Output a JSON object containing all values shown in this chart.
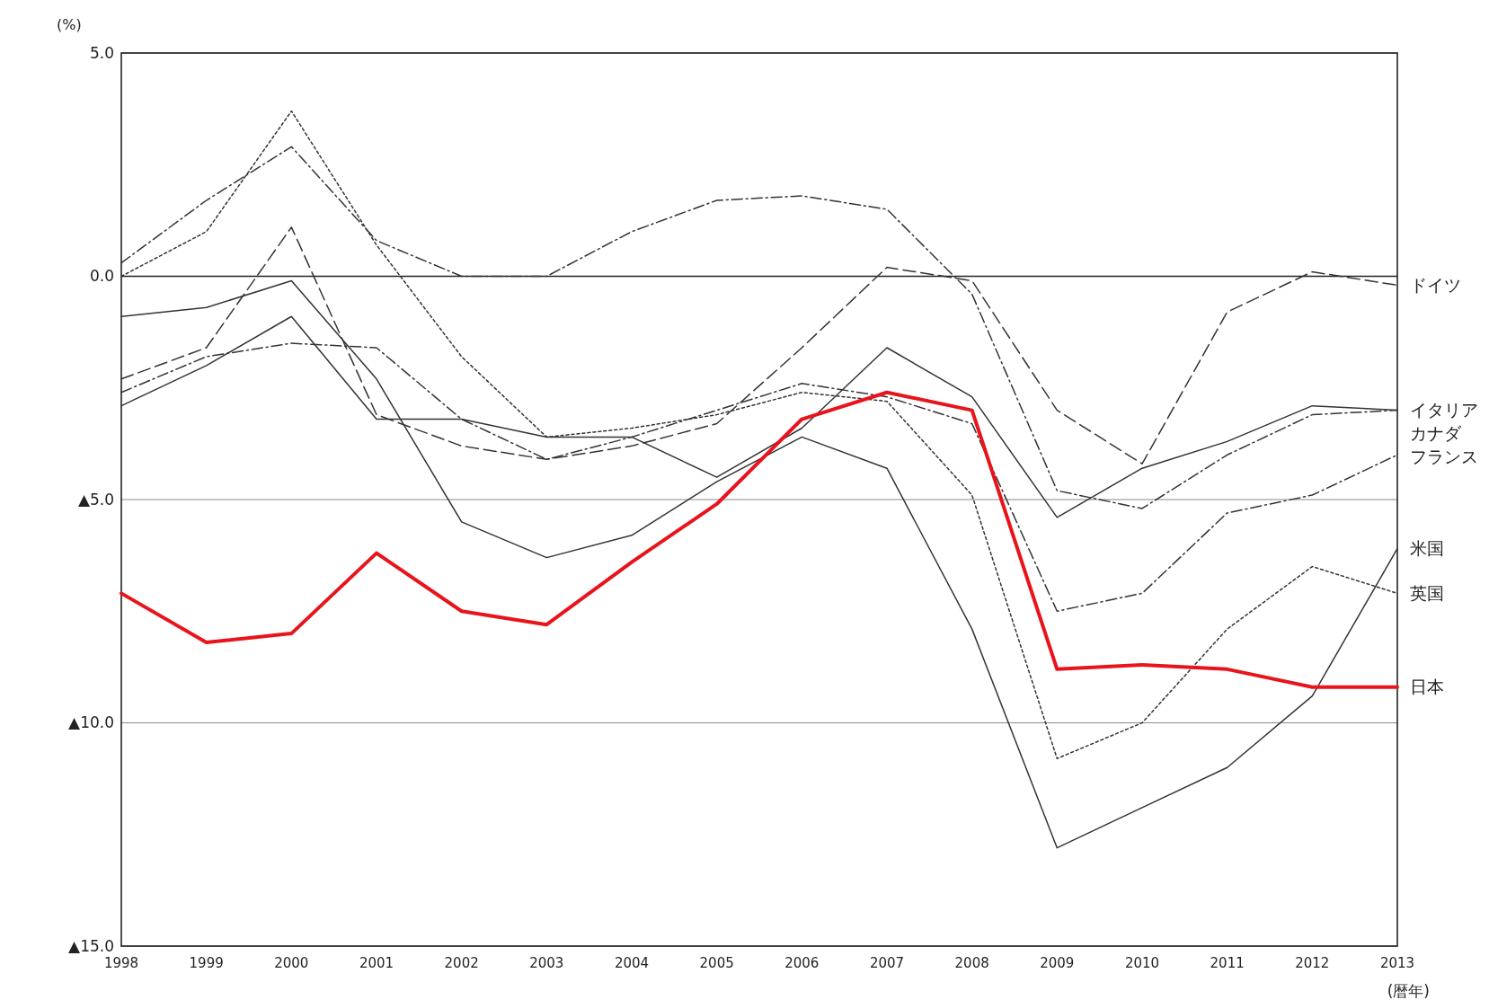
{
  "chart_data": {
    "type": "line",
    "ylabel": "(%)",
    "xlabel": "(暦年)",
    "categories": [
      "1998",
      "1999",
      "2000",
      "2001",
      "2002",
      "2003",
      "2004",
      "2005",
      "2006",
      "2007",
      "2008",
      "2009",
      "2010",
      "2011",
      "2012",
      "2013"
    ],
    "ylim": [
      -15,
      5
    ],
    "yticks": [
      {
        "value": 5,
        "label": "5.0"
      },
      {
        "value": 0,
        "label": "0.0"
      },
      {
        "value": -5,
        "label": "▲5.0"
      },
      {
        "value": -10,
        "label": "▲10.0"
      },
      {
        "value": -15,
        "label": "▲15.0"
      }
    ],
    "grid": "y",
    "marker": "none",
    "series": [
      {
        "name": "ドイツ",
        "color": "#333333",
        "line_style": "dashed",
        "values": [
          -2.3,
          -1.6,
          1.1,
          -3.1,
          -3.8,
          -4.1,
          -3.8,
          -3.3,
          -1.6,
          0.2,
          -0.1,
          -3.0,
          -4.2,
          -0.8,
          0.1,
          -0.2
        ]
      },
      {
        "name": "イタリア",
        "color": "#333333",
        "line_style": "solid",
        "values": [
          -2.9,
          -2.0,
          -0.9,
          -3.2,
          -3.2,
          -3.6,
          -3.6,
          -4.5,
          -3.4,
          -1.6,
          -2.7,
          -5.4,
          -4.3,
          -3.7,
          -2.9,
          -3.0
        ]
      },
      {
        "name": "カナダ",
        "color": "#333333",
        "line_style": "dashdot",
        "values": [
          0.3,
          1.7,
          2.9,
          0.8,
          0.0,
          0.0,
          1.0,
          1.7,
          1.8,
          1.5,
          -0.4,
          -4.8,
          -5.2,
          -4.0,
          -3.1,
          -3.0
        ]
      },
      {
        "name": "フランス",
        "color": "#333333",
        "line_style": "dashdot",
        "values": [
          -2.6,
          -1.8,
          -1.5,
          -1.6,
          -3.2,
          -4.1,
          -3.6,
          -3.0,
          -2.4,
          -2.7,
          -3.3,
          -7.5,
          -7.1,
          -5.3,
          -4.9,
          -4.0
        ]
      },
      {
        "name": "米国",
        "color": "#333333",
        "line_style": "solid",
        "values": [
          -0.9,
          -0.7,
          -0.1,
          -2.3,
          -5.5,
          -6.3,
          -5.8,
          -4.6,
          -3.6,
          -4.3,
          -7.9,
          -12.8,
          -11.9,
          -11.0,
          -9.4,
          -6.1
        ]
      },
      {
        "name": "英国",
        "color": "#333333",
        "line_style": "dotted",
        "values": [
          0.0,
          1.0,
          3.7,
          0.7,
          -1.8,
          -3.6,
          -3.4,
          -3.1,
          -2.6,
          -2.8,
          -4.9,
          -10.8,
          -10.0,
          -7.9,
          -6.5,
          -7.1
        ]
      },
      {
        "name": "日本",
        "color": "#e8141b",
        "line_style": "solid",
        "values": [
          -7.1,
          -8.2,
          -8.0,
          -6.2,
          -7.5,
          -7.8,
          -6.4,
          -5.1,
          -3.2,
          -2.6,
          -3.0,
          -8.8,
          -8.7,
          -8.8,
          -9.2,
          -9.2
        ]
      }
    ]
  }
}
